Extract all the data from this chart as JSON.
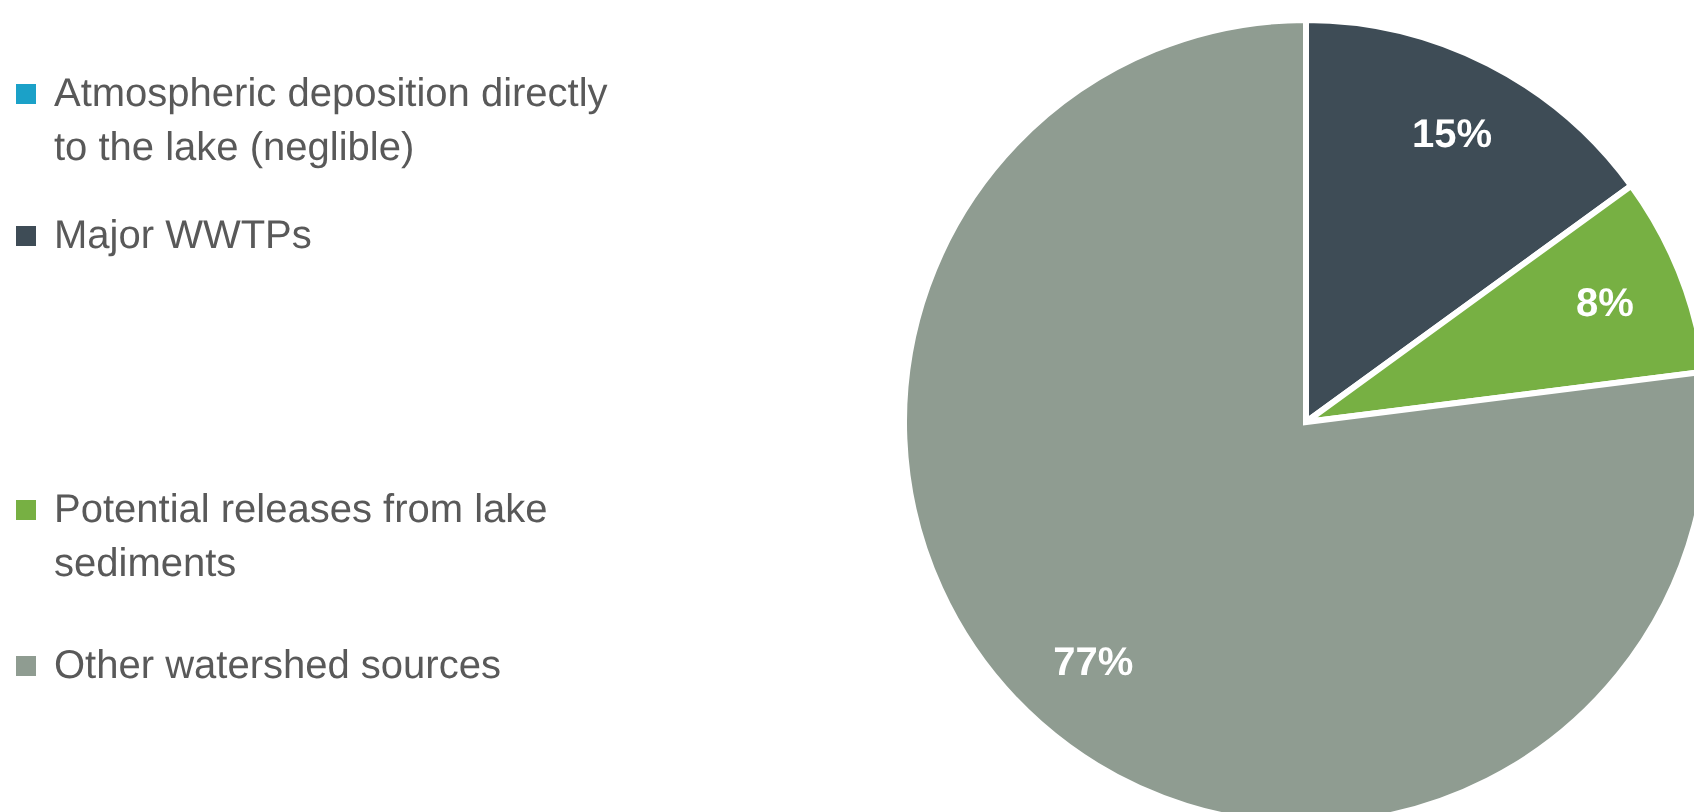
{
  "chart_data": {
    "type": "pie",
    "categories": [
      "Atmospheric deposition directly to the lake (neglible)",
      "Major WWTPs",
      "Potential releases from lake sediments",
      "Other watershed sources"
    ],
    "values": [
      0,
      15,
      8,
      77
    ],
    "colors": [
      "#1ba1c8",
      "#3e4c56",
      "#77b043",
      "#8f9c91"
    ],
    "value_labels": [
      null,
      "15%",
      "8%",
      "77%"
    ],
    "legend": "left"
  }
}
